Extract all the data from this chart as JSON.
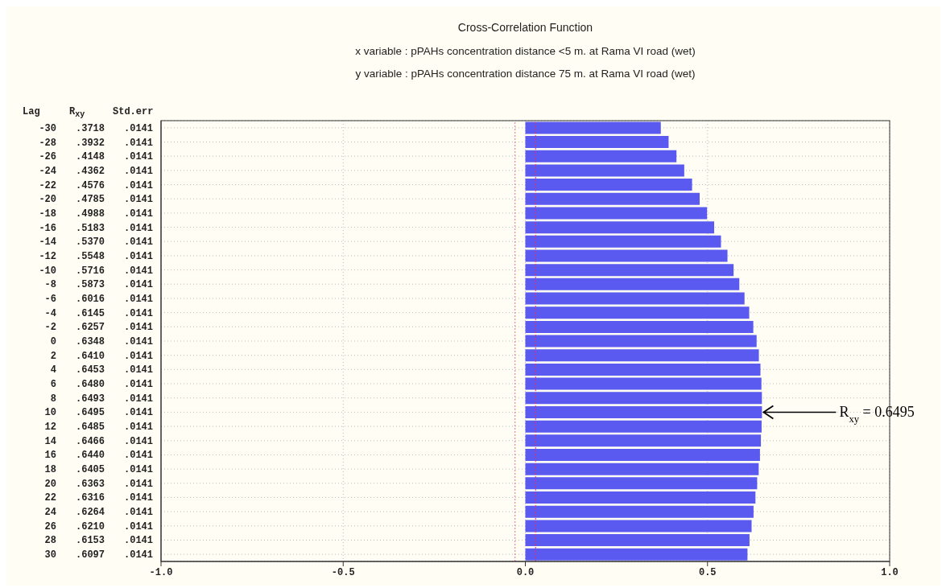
{
  "chart_data": {
    "type": "bar",
    "orientation": "horizontal",
    "title": "Cross-Correlation Function",
    "subtitle": "x variable : pPAHs concentration distance <5 m. at Rama VI road (wet)\ny variable : pPAHs concentration distance 75 m. at Rama VI road (wet)",
    "categories": [
      "-30",
      "-28",
      "-26",
      "-24",
      "-22",
      "-20",
      "-18",
      "-16",
      "-14",
      "-12",
      "-10",
      "-8",
      "-6",
      "-4",
      "-2",
      "0",
      "2",
      "4",
      "6",
      "8",
      "10",
      "12",
      "14",
      "16",
      "18",
      "20",
      "22",
      "24",
      "26",
      "28",
      "30"
    ],
    "values": [
      0.3718,
      0.3932,
      0.4148,
      0.4362,
      0.4576,
      0.4785,
      0.4988,
      0.5183,
      0.537,
      0.5548,
      0.5716,
      0.5873,
      0.6016,
      0.6145,
      0.6257,
      0.6348,
      0.641,
      0.6453,
      0.648,
      0.6493,
      0.6495,
      0.6485,
      0.6466,
      0.644,
      0.6405,
      0.6363,
      0.6316,
      0.6264,
      0.621,
      0.6153,
      0.6097
    ],
    "value_labels": [
      ".3718",
      ".3932",
      ".4148",
      ".4362",
      ".4576",
      ".4785",
      ".4988",
      ".5183",
      ".5370",
      ".5548",
      ".5716",
      ".5873",
      ".6016",
      ".6145",
      ".6257",
      ".6348",
      ".6410",
      ".6453",
      ".6480",
      ".6493",
      ".6495",
      ".6485",
      ".6466",
      ".6440",
      ".6405",
      ".6363",
      ".6316",
      ".6264",
      ".6210",
      ".6153",
      ".6097"
    ],
    "color": "#5a5af0",
    "xlim": [
      -1,
      1
    ],
    "xticks": [
      {
        "value": -1,
        "label": "-1.0"
      },
      {
        "value": -0.5,
        "label": "-0.5"
      },
      {
        "value": 0,
        "label": "0.0"
      },
      {
        "value": 0.5,
        "label": "0.5"
      },
      {
        "value": 1,
        "label": "1.0"
      }
    ],
    "grid": true,
    "ref_lines": [
      {
        "axis": "x",
        "value": -0.0282,
        "color": "#e07090",
        "line_style": "dotted"
      },
      {
        "axis": "x",
        "value": 0.0282,
        "color": "#e03060",
        "line_style": "dotted"
      }
    ],
    "annotations": [
      "Lag",
      "R$_{xy}$",
      "Std.err",
      ".0141",
      ".0141",
      ".0141",
      ".0141",
      ".0141",
      ".0141",
      ".0141",
      ".0141",
      ".0141",
      ".0141",
      ".0141",
      ".0141",
      ".0141",
      ".0141",
      ".0141",
      ".0141",
      ".0141",
      ".0141",
      ".0141",
      ".0141",
      ".0141",
      ".0141",
      ".0141",
      ".0141",
      ".0141",
      ".0141",
      ".0141",
      ".0141",
      ".0141",
      ".0141",
      ".0141",
      {
        "text": "R$_{xy}$ = 0.6495",
        "x": 0.6495,
        "y": "10"
      }
    ]
  }
}
